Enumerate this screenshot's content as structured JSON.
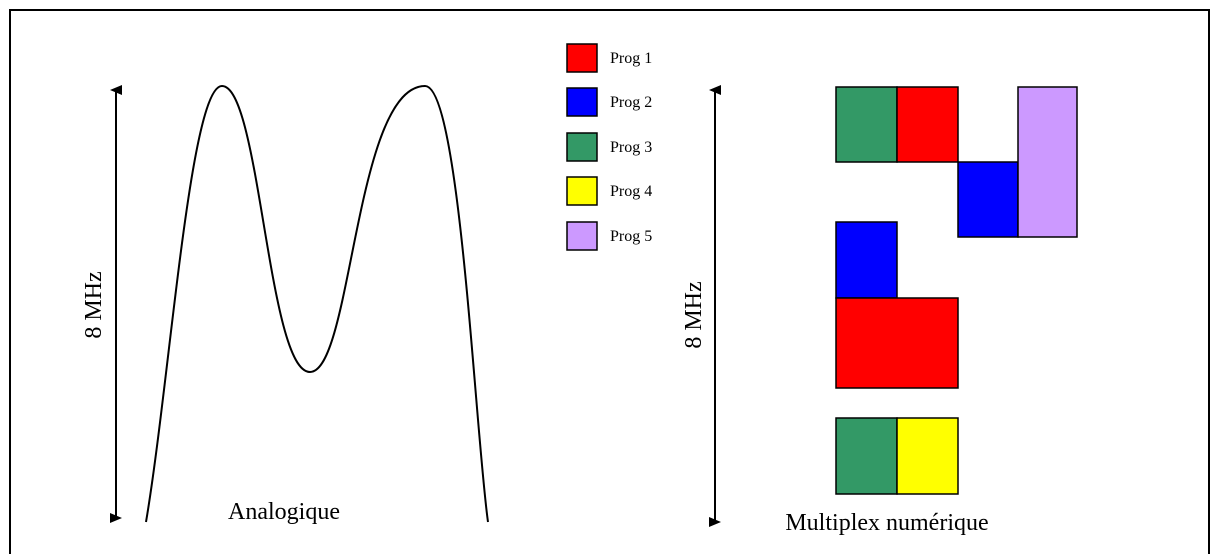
{
  "analog": {
    "axis_label": "8 MHz",
    "caption": "Analogique"
  },
  "digital": {
    "axis_label": "8 MHz",
    "caption": "Multiplex numérique"
  },
  "legend": [
    {
      "label": "Prog 1",
      "color": "#ff0000"
    },
    {
      "label": "Prog 2",
      "color": "#0000ff"
    },
    {
      "label": "Prog 3",
      "color": "#339966"
    },
    {
      "label": "Prog 4",
      "color": "#ffff00"
    },
    {
      "label": "Prog 5",
      "color": "#cc99ff"
    }
  ],
  "blocks": [
    {
      "prog": "Prog 3",
      "color": "#339966"
    },
    {
      "prog": "Prog 1",
      "color": "#ff0000"
    },
    {
      "prog": "Prog 2",
      "color": "#0000ff"
    },
    {
      "prog": "Prog 5",
      "color": "#cc99ff"
    },
    {
      "prog": "Prog 2",
      "color": "#0000ff"
    },
    {
      "prog": "Prog 1",
      "color": "#ff0000"
    },
    {
      "prog": "Prog 3",
      "color": "#339966"
    },
    {
      "prog": "Prog 4",
      "color": "#ffff00"
    }
  ]
}
